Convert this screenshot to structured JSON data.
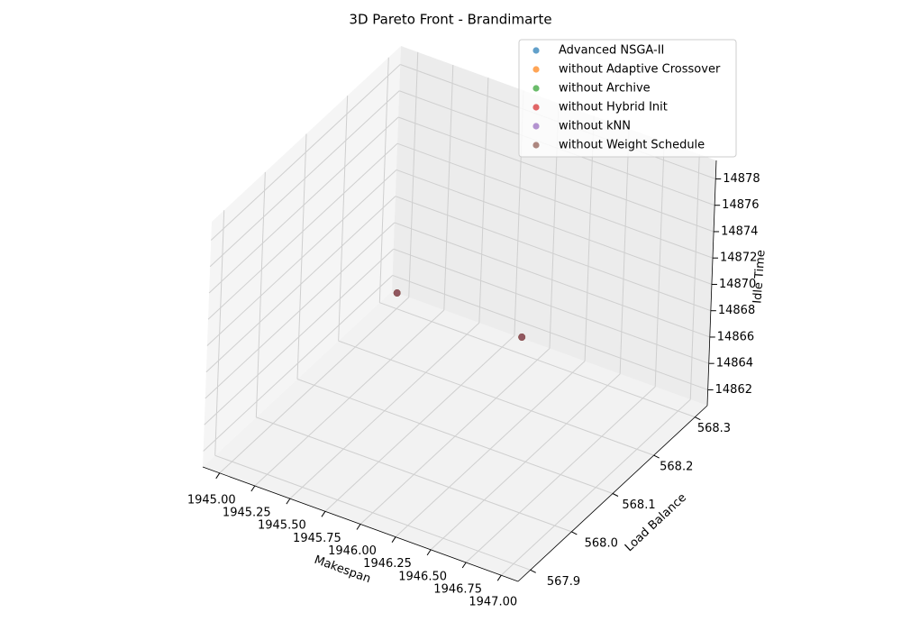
{
  "chart_data": {
    "type": "scatter3d",
    "title": "3D Pareto Front - Brandimarte",
    "xlabel": "Makespan",
    "ylabel": "Load Balance",
    "zlabel": "Idle Time",
    "xlim": [
      1944.88,
      1947.12
    ],
    "ylim": [
      567.87,
      568.33
    ],
    "zlim": [
      14860.8,
      14879.4
    ],
    "xticks": [
      {
        "value": 1945,
        "label": "1945.00"
      },
      {
        "value": 1945.25,
        "label": "1945.25"
      },
      {
        "value": 1945.5,
        "label": "1945.50"
      },
      {
        "value": 1945.75,
        "label": "1945.75"
      },
      {
        "value": 1946,
        "label": "1946.00"
      },
      {
        "value": 1946.25,
        "label": "1946.25"
      },
      {
        "value": 1946.5,
        "label": "1946.50"
      },
      {
        "value": 1946.75,
        "label": "1946.75"
      },
      {
        "value": 1947,
        "label": "1947.00"
      }
    ],
    "yticks": [
      567.9,
      {
        "value": 568,
        "label": "568.0"
      },
      568.1,
      568.2,
      568.3
    ],
    "zticks": [
      14862,
      14864,
      14866,
      14868,
      14870,
      14872,
      14874,
      14876,
      14878
    ],
    "grid": true,
    "legend": "upper right",
    "series": [
      {
        "name": "Advanced NSGA-II",
        "color": "#1f77b4",
        "x": [
          1945,
          1947
        ],
        "y": [
          568.3,
          567.9
        ],
        "z": [
          14862,
          14878
        ]
      },
      {
        "name": "without Adaptive Crossover",
        "color": "#ff7f0e",
        "x": [
          1945,
          1947
        ],
        "y": [
          568.3,
          567.9
        ],
        "z": [
          14862,
          14878
        ]
      },
      {
        "name": "without Archive",
        "color": "#2ca02c",
        "x": [
          1945,
          1947
        ],
        "y": [
          568.3,
          567.9
        ],
        "z": [
          14862,
          14878
        ]
      },
      {
        "name": "without Hybrid Init",
        "color": "#d62728",
        "x": [
          1945,
          1947
        ],
        "y": [
          568.3,
          567.9
        ],
        "z": [
          14862,
          14878
        ]
      },
      {
        "name": "without kNN",
        "color": "#9467bd",
        "x": [
          1945,
          1947
        ],
        "y": [
          568.3,
          567.9
        ],
        "z": [
          14862,
          14878
        ]
      },
      {
        "name": "without Weight Schedule",
        "color": "#8c564b",
        "x": [
          1945,
          1947
        ],
        "y": [
          568.3,
          567.9
        ],
        "z": [
          14862,
          14878
        ]
      }
    ]
  }
}
